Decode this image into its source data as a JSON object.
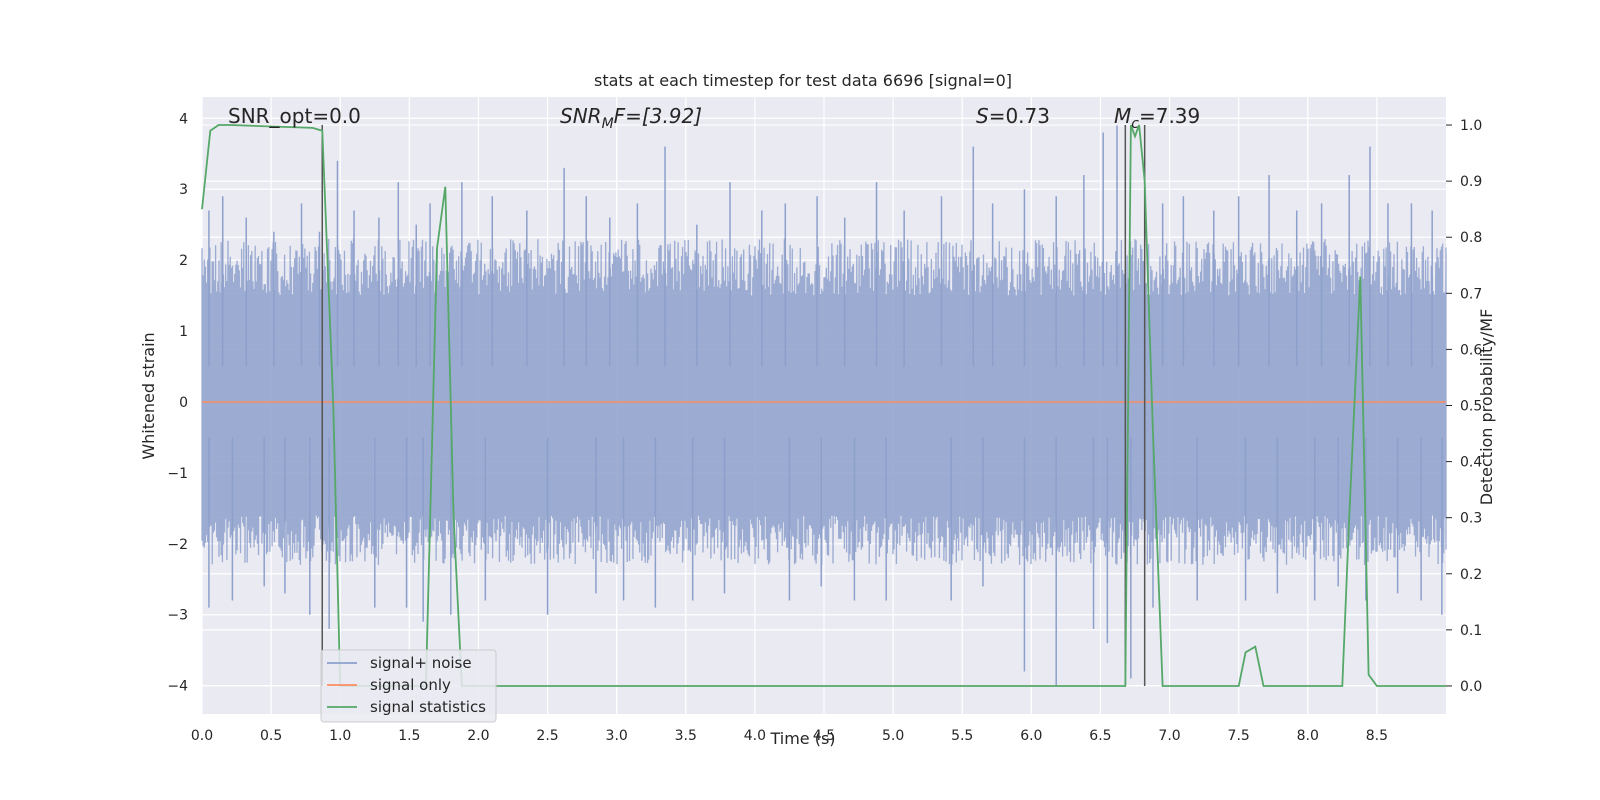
{
  "chart_data": {
    "type": "line",
    "title": "stats at each timestep for test data 6696 [signal=0]",
    "xlabel": "Time (s)",
    "ylabel_left": "Whitened strain",
    "ylabel_right": "Detection probability/MF",
    "xlim": [
      0.0,
      9.0
    ],
    "ylim_left": [
      -4.4,
      4.3
    ],
    "ylim_right": [
      -0.05,
      1.05
    ],
    "x_ticks": [
      "0.0",
      "0.5",
      "1.0",
      "1.5",
      "2.0",
      "2.5",
      "3.0",
      "3.5",
      "4.0",
      "4.5",
      "5.0",
      "5.5",
      "6.0",
      "6.5",
      "7.0",
      "7.5",
      "8.0",
      "8.5"
    ],
    "y_ticks_left": [
      "−4",
      "−3",
      "−2",
      "−1",
      "0",
      "1",
      "2",
      "3",
      "4"
    ],
    "y_ticks_right": [
      "0.0",
      "0.1",
      "0.2",
      "0.3",
      "0.4",
      "0.5",
      "0.6",
      "0.7",
      "0.8",
      "0.9",
      "1.0"
    ],
    "grid": true,
    "legend_position": "lower-left",
    "annotations": {
      "snr_opt": "SNR_opt=0.0",
      "snr_mf": "SNR",
      "snr_mf_sub": "M",
      "snr_mf_rest": "F=[3.92]",
      "s": "S",
      "s_rest": "=0.73",
      "mc": "M",
      "mc_sub": "c",
      "mc_rest": "=7.39"
    },
    "series": [
      {
        "name": "signal+ noise",
        "axis": "left",
        "color": "#8da0cb",
        "noise_envelope": {
          "upper": [
            1.5,
            2.3
          ],
          "lower": [
            -1.6,
            -2.3
          ]
        },
        "spikes_high": [
          [
            0.05,
            2.7
          ],
          [
            0.15,
            2.9
          ],
          [
            0.32,
            2.6
          ],
          [
            0.52,
            2.4
          ],
          [
            0.72,
            2.8
          ],
          [
            0.85,
            2.4
          ],
          [
            0.98,
            3.4
          ],
          [
            1.1,
            2.7
          ],
          [
            1.28,
            2.6
          ],
          [
            1.42,
            3.1
          ],
          [
            1.55,
            2.5
          ],
          [
            1.65,
            2.8
          ],
          [
            1.88,
            3.1
          ],
          [
            2.1,
            2.9
          ],
          [
            2.35,
            2.7
          ],
          [
            2.62,
            3.3
          ],
          [
            2.78,
            2.9
          ],
          [
            2.95,
            2.6
          ],
          [
            3.15,
            2.8
          ],
          [
            3.35,
            3.6
          ],
          [
            3.58,
            2.5
          ],
          [
            3.82,
            3.1
          ],
          [
            4.05,
            2.7
          ],
          [
            4.22,
            2.8
          ],
          [
            4.45,
            2.9
          ],
          [
            4.65,
            2.6
          ],
          [
            4.88,
            3.1
          ],
          [
            5.08,
            2.7
          ],
          [
            5.35,
            2.9
          ],
          [
            5.58,
            3.6
          ],
          [
            5.72,
            2.8
          ],
          [
            5.95,
            3.0
          ],
          [
            6.18,
            2.9
          ],
          [
            6.38,
            3.2
          ],
          [
            6.52,
            3.8
          ],
          [
            6.62,
            3.9
          ],
          [
            6.95,
            2.8
          ],
          [
            7.1,
            2.9
          ],
          [
            7.32,
            2.7
          ],
          [
            7.5,
            2.9
          ],
          [
            7.72,
            3.2
          ],
          [
            7.92,
            2.7
          ],
          [
            8.1,
            2.8
          ],
          [
            8.3,
            3.2
          ],
          [
            8.45,
            3.6
          ],
          [
            8.58,
            2.8
          ],
          [
            8.75,
            2.8
          ],
          [
            8.9,
            2.7
          ]
        ],
        "spikes_low": [
          [
            0.05,
            -2.9
          ],
          [
            0.22,
            -2.8
          ],
          [
            0.45,
            -2.6
          ],
          [
            0.6,
            -2.7
          ],
          [
            0.78,
            -3.0
          ],
          [
            0.92,
            -3.2
          ],
          [
            1.25,
            -2.9
          ],
          [
            1.48,
            -2.9
          ],
          [
            1.6,
            -3.1
          ],
          [
            1.8,
            -3.0
          ],
          [
            2.05,
            -2.8
          ],
          [
            2.5,
            -3.0
          ],
          [
            2.85,
            -2.7
          ],
          [
            3.05,
            -2.8
          ],
          [
            3.28,
            -2.9
          ],
          [
            3.55,
            -2.8
          ],
          [
            3.78,
            -2.7
          ],
          [
            4.25,
            -2.8
          ],
          [
            4.48,
            -2.6
          ],
          [
            4.72,
            -2.8
          ],
          [
            4.95,
            -2.8
          ],
          [
            5.42,
            -2.8
          ],
          [
            5.65,
            -2.6
          ],
          [
            5.95,
            -3.8
          ],
          [
            6.18,
            -4.0
          ],
          [
            6.45,
            -3.2
          ],
          [
            6.55,
            -3.4
          ],
          [
            6.72,
            -3.9
          ],
          [
            6.88,
            -2.9
          ],
          [
            7.2,
            -2.8
          ],
          [
            7.55,
            -2.8
          ],
          [
            7.78,
            -2.7
          ],
          [
            8.05,
            -2.8
          ],
          [
            8.22,
            -2.6
          ],
          [
            8.42,
            -2.8
          ],
          [
            8.65,
            -2.7
          ],
          [
            8.82,
            -2.8
          ],
          [
            8.97,
            -3.0
          ]
        ]
      },
      {
        "name": "signal only",
        "axis": "left",
        "color": "#fc8d62",
        "x": [
          0.0,
          9.0
        ],
        "y": [
          0.0,
          0.0
        ]
      },
      {
        "name": "signal statistics",
        "axis": "right",
        "color": "#55a868",
        "x": [
          0.0,
          0.06,
          0.12,
          0.2,
          0.8,
          0.87,
          0.95,
          1.0,
          1.5,
          1.62,
          1.7,
          1.76,
          1.82,
          1.88,
          6.65,
          6.68,
          6.72,
          6.75,
          6.78,
          6.82,
          6.88,
          6.95,
          7.5,
          7.55,
          7.62,
          7.68,
          8.25,
          8.3,
          8.38,
          8.44,
          8.5,
          9.0
        ],
        "y": [
          0.85,
          0.99,
          1.0,
          1.0,
          0.995,
          0.99,
          0.5,
          0.0,
          0.0,
          0.0,
          0.78,
          0.89,
          0.3,
          0.0,
          0.0,
          0.0,
          1.0,
          0.98,
          1.0,
          0.9,
          0.45,
          0.0,
          0.0,
          0.06,
          0.07,
          0.0,
          0.0,
          0.3,
          0.73,
          0.02,
          0.0,
          0.0
        ]
      }
    ],
    "vlines": [
      0.87,
      6.68,
      6.82
    ]
  }
}
